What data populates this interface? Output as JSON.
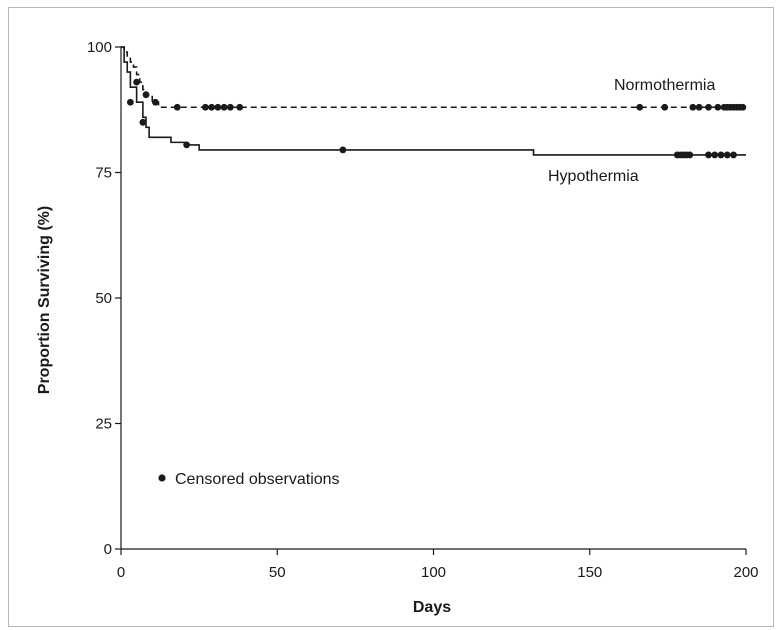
{
  "chart_data": {
    "type": "line",
    "xlabel": "Days",
    "ylabel": "Proportion Surviving (%)",
    "xlim": [
      0,
      200
    ],
    "ylim": [
      0,
      100
    ],
    "xticks": [
      0,
      50,
      100,
      150,
      200
    ],
    "yticks": [
      0,
      25,
      50,
      75,
      100
    ],
    "grid": false,
    "legend": {
      "text": "Censored observations",
      "placement": "bottom-left"
    },
    "series": [
      {
        "name": "Normothermia",
        "style": "dashed",
        "color": "#1a1a1a",
        "steps": [
          [
            0,
            100
          ],
          [
            1,
            99
          ],
          [
            2,
            98
          ],
          [
            3,
            97
          ],
          [
            4,
            96
          ],
          [
            5,
            94.5
          ],
          [
            6,
            93
          ],
          [
            7,
            91.5
          ],
          [
            8,
            90.5
          ],
          [
            10,
            89
          ],
          [
            12,
            88
          ],
          [
            200,
            88
          ]
        ],
        "censored": [
          [
            5,
            93
          ],
          [
            8,
            90.5
          ],
          [
            11,
            89
          ],
          [
            18,
            88
          ],
          [
            27,
            88
          ],
          [
            29,
            88
          ],
          [
            31,
            88
          ],
          [
            33,
            88
          ],
          [
            35,
            88
          ],
          [
            38,
            88
          ],
          [
            166,
            88
          ],
          [
            174,
            88
          ],
          [
            183,
            88
          ],
          [
            185,
            88
          ],
          [
            188,
            88
          ],
          [
            191,
            88
          ],
          [
            193,
            88
          ],
          [
            194,
            88
          ],
          [
            195,
            88
          ],
          [
            196,
            88
          ],
          [
            197,
            88
          ],
          [
            198,
            88
          ],
          [
            199,
            88
          ]
        ]
      },
      {
        "name": "Hypothermia",
        "style": "solid",
        "color": "#1a1a1a",
        "steps": [
          [
            0,
            100
          ],
          [
            1,
            97
          ],
          [
            2,
            95
          ],
          [
            3,
            92
          ],
          [
            5,
            89
          ],
          [
            7,
            86
          ],
          [
            8,
            84
          ],
          [
            9,
            82
          ],
          [
            16,
            81
          ],
          [
            21,
            80.5
          ],
          [
            25,
            79.5
          ],
          [
            132,
            78.5
          ],
          [
            200,
            78.5
          ]
        ],
        "censored": [
          [
            3,
            89
          ],
          [
            7,
            85
          ],
          [
            21,
            80.5
          ],
          [
            71,
            79.5
          ],
          [
            178,
            78.5
          ],
          [
            179,
            78.5
          ],
          [
            180,
            78.5
          ],
          [
            181,
            78.5
          ],
          [
            182,
            78.5
          ],
          [
            188,
            78.5
          ],
          [
            190,
            78.5
          ],
          [
            192,
            78.5
          ],
          [
            194,
            78.5
          ],
          [
            196,
            78.5
          ]
        ]
      }
    ]
  }
}
